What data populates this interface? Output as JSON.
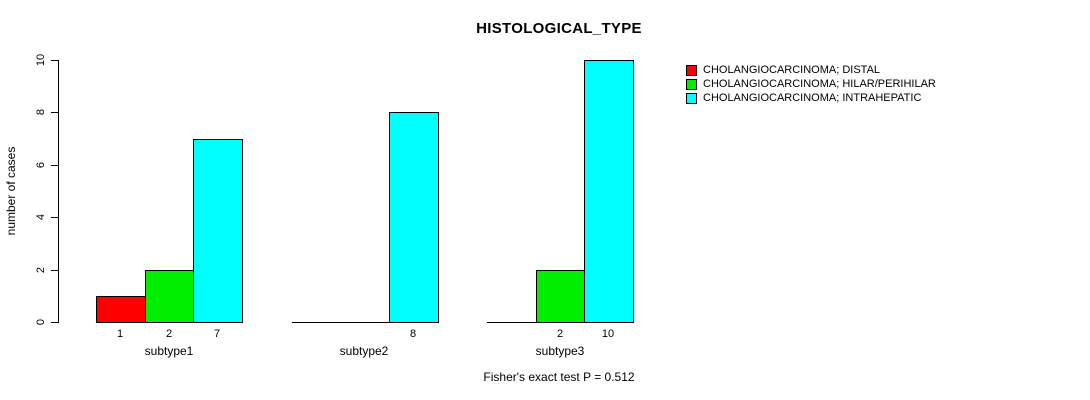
{
  "chart_data": {
    "type": "bar",
    "title": "HISTOLOGICAL_TYPE",
    "ylabel": "number of cases",
    "xlabel": "",
    "annotation": "Fisher's exact test P = 0.512",
    "categories": [
      "subtype1",
      "subtype2",
      "subtype3"
    ],
    "series": [
      {
        "name": "CHOLANGIOCARCINOMA; DISTAL",
        "color": "#FF0000",
        "values": [
          1,
          0,
          0
        ]
      },
      {
        "name": "CHOLANGIOCARCINOMA; HILAR/PERIHILAR",
        "color": "#00EE00",
        "values": [
          2,
          0,
          2
        ]
      },
      {
        "name": "CHOLANGIOCARCINOMA; INTRAHEPATIC",
        "color": "#00FFFF",
        "values": [
          7,
          8,
          10
        ]
      }
    ],
    "yticks": [
      0,
      2,
      4,
      6,
      8,
      10
    ],
    "ylim": [
      0,
      10
    ],
    "grid": false,
    "legend_position": "top-right",
    "bar_value_labels": "shown under bars for non-zero values",
    "axis_color": "#000000",
    "background_color": "#FFFFFF"
  }
}
